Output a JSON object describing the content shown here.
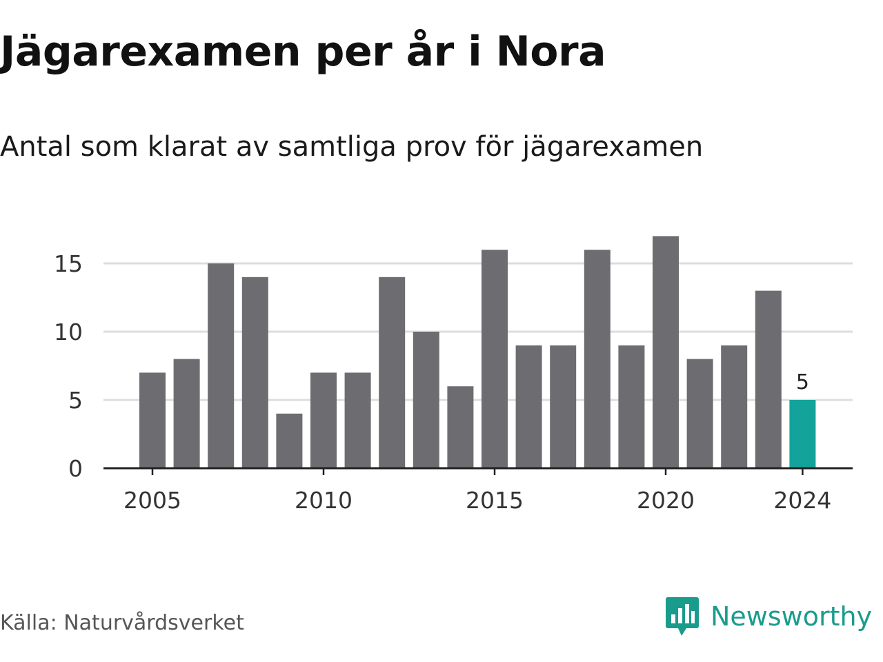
{
  "header": {
    "title": "Jägarexamen per år i Nora",
    "subtitle": "Antal som klarat av samtliga prov för jägarexamen"
  },
  "footer": {
    "source": "Källa: Naturvårdsverket",
    "brand": "Newsworthy",
    "brand_icon": "newsworthy-chart-bubble-icon"
  },
  "colors": {
    "bar": "#6d6c71",
    "highlight": "#14a39a",
    "grid": "#dddddd",
    "axis": "#222222",
    "brand": "#1a9c8c"
  },
  "chart_data": {
    "type": "bar",
    "categories": [
      2005,
      2006,
      2007,
      2008,
      2009,
      2010,
      2011,
      2012,
      2013,
      2014,
      2015,
      2016,
      2017,
      2018,
      2019,
      2020,
      2021,
      2022,
      2023,
      2024
    ],
    "values": [
      7,
      8,
      15,
      14,
      4,
      7,
      7,
      14,
      10,
      6,
      16,
      9,
      9,
      16,
      9,
      17,
      8,
      9,
      13,
      5
    ],
    "title": "Jägarexamen per år i Nora",
    "subtitle": "Antal som klarat av samtliga prov för jägarexamen",
    "xlabel": "",
    "ylabel": "",
    "ylim": [
      0,
      17
    ],
    "y_ticks": [
      "0",
      "5",
      "10",
      "15"
    ],
    "x_ticks": [
      "2005",
      "2010",
      "2015",
      "2020",
      "2024"
    ],
    "highlight": {
      "category": 2024,
      "label": "5"
    },
    "grid": true
  }
}
